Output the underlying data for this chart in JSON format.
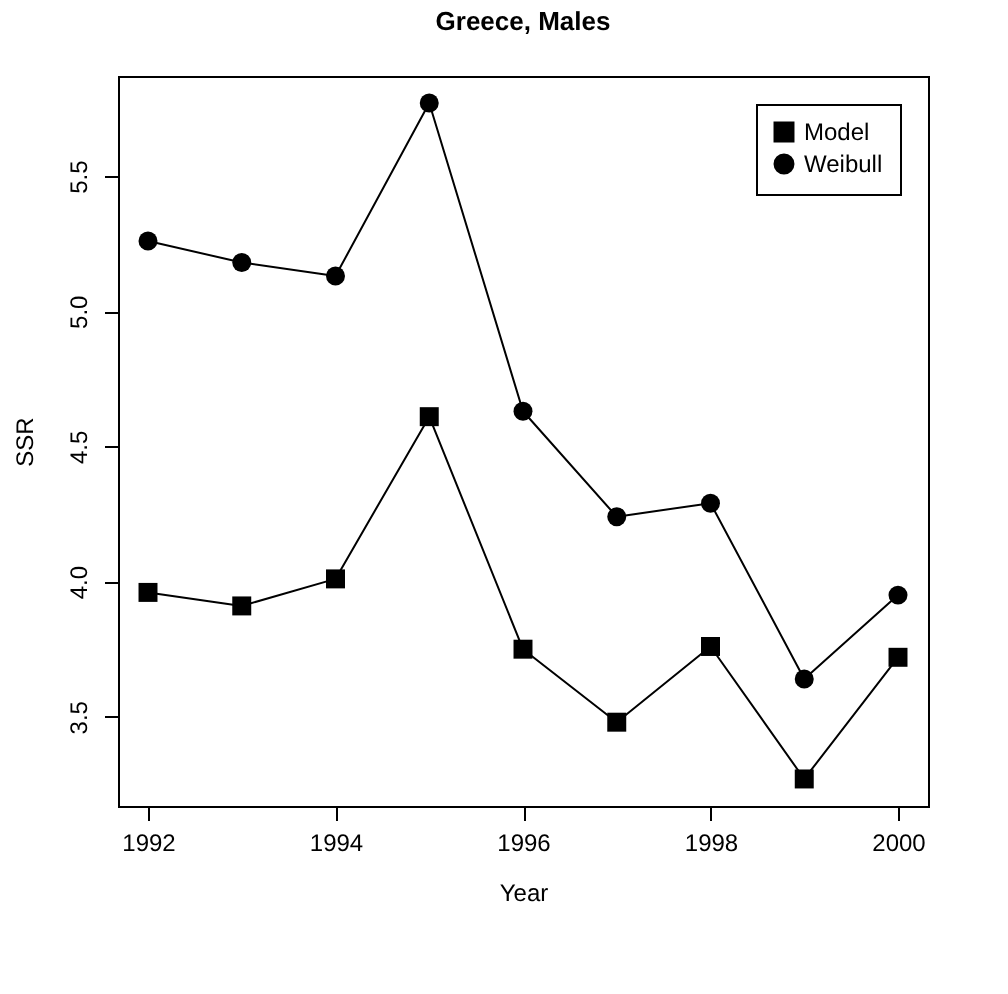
{
  "chart_data": {
    "type": "line",
    "title": "Greece, Males",
    "xlabel": "Year",
    "ylabel": "SSR",
    "x": [
      1992,
      1993,
      1994,
      1995,
      1996,
      1997,
      1998,
      1999,
      2000
    ],
    "series": [
      {
        "name": "Model",
        "color": "#000000",
        "marker": "square",
        "values": [
          3.96,
          3.91,
          4.01,
          4.61,
          3.75,
          3.48,
          3.76,
          3.27,
          3.72
        ]
      },
      {
        "name": "Weibull",
        "color": "#000000",
        "marker": "circle",
        "values": [
          5.26,
          5.18,
          5.13,
          5.77,
          4.63,
          4.24,
          4.29,
          3.64,
          3.95
        ]
      }
    ],
    "xlim": [
      1991.68,
      2000.32
    ],
    "ylim": [
      3.17,
      5.87
    ],
    "xticks": [
      1992,
      1994,
      1996,
      1998,
      2000
    ],
    "yticks": [
      3.5,
      {
        "value": 4,
        "label": "4.0"
      },
      4.5,
      {
        "value": 5,
        "label": "5.0"
      },
      5.5
    ],
    "grid": false,
    "legend": "top right",
    "line_style": "solid"
  }
}
